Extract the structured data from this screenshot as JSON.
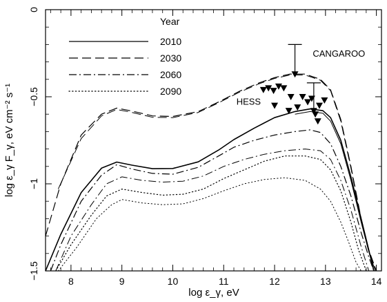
{
  "chart_data": {
    "type": "line",
    "xlabel": "log ε_γ, eV",
    "ylabel": "log ε_γ F_γ, eV cm⁻² s⁻¹",
    "xlim": [
      7.5,
      14.1
    ],
    "ylim": [
      -1.5,
      0
    ],
    "xticks": [
      8,
      9,
      10,
      11,
      12,
      13,
      14
    ],
    "yticks": [
      -1.5,
      -1,
      -0.5,
      0
    ],
    "ytick_labels": [
      "−1.5",
      "−1",
      "−0.5",
      "0"
    ],
    "grid": false,
    "legend": {
      "title": "Year",
      "position": "top-left",
      "entries": [
        {
          "label": "2010",
          "dash": "solid"
        },
        {
          "label": "2030",
          "dash": "dashed"
        },
        {
          "label": "2060",
          "dash": "dashdot"
        },
        {
          "label": "2090",
          "dash": "dotted"
        }
      ]
    },
    "series": [
      {
        "name": "2010",
        "dash": "solid",
        "stroke": 1.6,
        "x": [
          7.5,
          7.8,
          8.2,
          8.6,
          8.9,
          9.2,
          9.6,
          10.0,
          10.5,
          10.9,
          11.2,
          11.6,
          12.0,
          12.4,
          12.7,
          12.95,
          13.1,
          13.3,
          13.5,
          13.7,
          13.85,
          13.95
        ],
        "y": [
          -1.5,
          -1.29,
          -1.05,
          -0.91,
          -0.875,
          -0.893,
          -0.913,
          -0.912,
          -0.874,
          -0.806,
          -0.746,
          -0.68,
          -0.62,
          -0.585,
          -0.57,
          -0.58,
          -0.62,
          -0.75,
          -0.96,
          -1.2,
          -1.38,
          -1.5
        ]
      },
      {
        "name": "2010",
        "dash": "solid",
        "stroke": 1.0,
        "x": [
          12.4,
          12.7,
          12.95,
          13.1,
          13.3,
          13.5,
          13.7,
          13.85,
          13.98
        ],
        "y": [
          -0.6,
          -0.585,
          -0.595,
          -0.64,
          -0.77,
          -0.98,
          -1.22,
          -1.39,
          -1.5
        ]
      },
      {
        "name": "2030",
        "dash": "dashed",
        "stroke": 1.2,
        "x": [
          7.5,
          7.8,
          8.2,
          8.6,
          8.9,
          9.2,
          9.6,
          10.0,
          10.5,
          10.9,
          11.3,
          11.7,
          12.0,
          12.3,
          12.6,
          12.9,
          13.1,
          13.3,
          13.5,
          13.7,
          13.85,
          14.0
        ],
        "y": [
          -1.3,
          -1.0,
          -0.72,
          -0.6,
          -0.565,
          -0.582,
          -0.61,
          -0.613,
          -0.585,
          -0.53,
          -0.47,
          -0.42,
          -0.39,
          -0.37,
          -0.37,
          -0.4,
          -0.46,
          -0.63,
          -0.9,
          -1.2,
          -1.38,
          -1.5
        ]
      },
      {
        "name": "2030",
        "dash": "dashed",
        "stroke": 1.0,
        "x": [
          7.75,
          8.2,
          8.6,
          8.9,
          9.2,
          9.6,
          10.0,
          10.5,
          10.9,
          11.3,
          11.7,
          12.0,
          12.3,
          12.6,
          12.9,
          13.1,
          13.3,
          13.5,
          13.7,
          13.85,
          14.0
        ],
        "y": [
          -1.03,
          -0.74,
          -0.61,
          -0.573,
          -0.59,
          -0.618,
          -0.62,
          -0.59,
          -0.535,
          -0.475,
          -0.425,
          -0.395,
          -0.375,
          -0.375,
          -0.405,
          -0.465,
          -0.64,
          -0.91,
          -1.21,
          -1.39,
          -1.5
        ]
      },
      {
        "name": "2060",
        "dash": "dashdot",
        "stroke": 1.2,
        "x": [
          7.6,
          7.8,
          8.2,
          8.6,
          8.9,
          9.2,
          9.6,
          10.0,
          10.5,
          10.9,
          11.2,
          11.6,
          12.0,
          12.4,
          12.7,
          12.9,
          13.1,
          13.3,
          13.5,
          13.7,
          13.85,
          13.95
        ],
        "y": [
          -1.5,
          -1.35,
          -1.1,
          -0.95,
          -0.89,
          -0.915,
          -0.94,
          -0.945,
          -0.905,
          -0.84,
          -0.79,
          -0.75,
          -0.72,
          -0.7,
          -0.69,
          -0.705,
          -0.77,
          -0.9,
          -1.07,
          -1.28,
          -1.42,
          -1.5
        ]
      },
      {
        "name": "2060",
        "dash": "dashdot",
        "stroke": 1.0,
        "x": [
          7.7,
          8.0,
          8.4,
          8.7,
          9.0,
          9.4,
          9.8,
          10.2,
          10.6,
          11.0,
          11.4,
          11.8,
          12.2,
          12.6,
          12.9,
          13.1,
          13.3,
          13.5,
          13.7,
          13.85
        ],
        "y": [
          -1.5,
          -1.3,
          -1.12,
          -1.0,
          -0.96,
          -0.98,
          -0.99,
          -0.985,
          -0.955,
          -0.9,
          -0.86,
          -0.83,
          -0.81,
          -0.8,
          -0.81,
          -0.86,
          -0.98,
          -1.15,
          -1.36,
          -1.5
        ]
      },
      {
        "name": "2090",
        "dash": "dotted",
        "stroke": 1.2,
        "x": [
          7.7,
          8.0,
          8.4,
          8.7,
          9.0,
          9.4,
          9.8,
          10.2,
          10.6,
          11.0,
          11.4,
          11.8,
          12.2,
          12.6,
          12.9,
          13.1,
          13.3,
          13.5,
          13.65,
          13.8
        ],
        "y": [
          -1.5,
          -1.35,
          -1.18,
          -1.07,
          -1.03,
          -1.05,
          -1.065,
          -1.06,
          -1.03,
          -0.97,
          -0.92,
          -0.87,
          -0.84,
          -0.84,
          -0.86,
          -0.92,
          -1.04,
          -1.22,
          -1.38,
          -1.5
        ]
      },
      {
        "name": "2090",
        "dash": "dotted",
        "stroke": 1.0,
        "x": [
          7.75,
          8.1,
          8.5,
          8.8,
          9.0,
          9.4,
          9.8,
          10.2,
          10.6,
          11.0,
          11.4,
          11.8,
          12.2,
          12.6,
          12.9,
          13.1,
          13.3,
          13.45,
          13.6,
          13.7
        ],
        "y": [
          -1.5,
          -1.37,
          -1.2,
          -1.12,
          -1.09,
          -1.11,
          -1.12,
          -1.115,
          -1.085,
          -1.04,
          -1.0,
          -0.975,
          -0.965,
          -0.98,
          -1.03,
          -1.1,
          -1.22,
          -1.33,
          -1.45,
          -1.5
        ]
      }
    ],
    "hess_points": [
      {
        "x": 11.78,
        "y": -0.46
      },
      {
        "x": 11.88,
        "y": -0.45
      },
      {
        "x": 11.98,
        "y": -0.465
      },
      {
        "x": 12.08,
        "y": -0.44
      },
      {
        "x": 12.18,
        "y": -0.45
      },
      {
        "x": 12.0,
        "y": -0.55
      },
      {
        "x": 12.28,
        "y": -0.58
      },
      {
        "x": 12.32,
        "y": -0.5
      },
      {
        "x": 12.45,
        "y": -0.56
      },
      {
        "x": 12.55,
        "y": -0.5
      },
      {
        "x": 12.65,
        "y": -0.53
      },
      {
        "x": 12.73,
        "y": -0.51
      },
      {
        "x": 12.8,
        "y": -0.6
      },
      {
        "x": 12.85,
        "y": -0.64
      },
      {
        "x": 12.88,
        "y": -0.55
      },
      {
        "x": 12.98,
        "y": -0.52
      }
    ],
    "upper_limits": [
      {
        "name": "CANGAROO",
        "x": 12.4,
        "y_from": -0.2,
        "y_to": -0.39
      },
      {
        "name": "HESS",
        "x": 12.77,
        "y_from": -0.42,
        "y_to": -0.6
      }
    ],
    "annotations": [
      {
        "text": "CANGAROO",
        "x": 12.75,
        "y": -0.27
      },
      {
        "text": "HESS",
        "x": 11.25,
        "y": -0.545
      }
    ]
  },
  "colors": {
    "axis": "#000000",
    "line": "#000000",
    "background": "#ffffff"
  }
}
